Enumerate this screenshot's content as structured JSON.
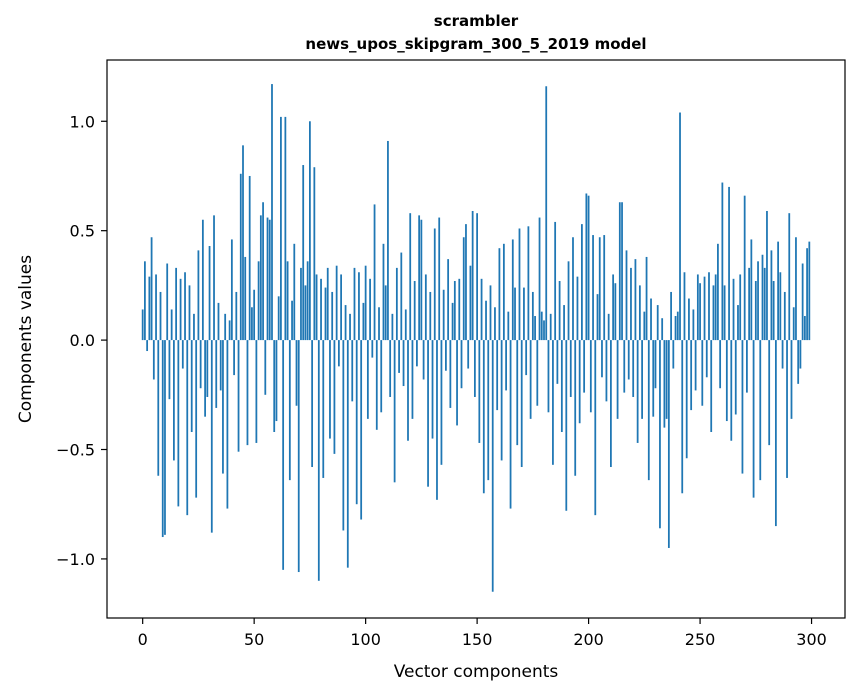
{
  "chart_data": {
    "type": "bar",
    "title": "scrambler",
    "subtitle": "news_upos_skipgram_300_5_2019 model",
    "xlabel": "Vector components",
    "ylabel": "Components values",
    "xlim": [
      -16,
      315
    ],
    "ylim": [
      -1.27,
      1.28
    ],
    "xticks": [
      0,
      50,
      100,
      150,
      200,
      250,
      300
    ],
    "yticks": [
      -1.0,
      -0.5,
      0.0,
      0.5,
      1.0
    ],
    "bar_color": "#1f77b4",
    "spine_color": "#000000",
    "x_start": 0,
    "values": [
      0.14,
      0.36,
      -0.05,
      0.29,
      0.47,
      -0.18,
      0.3,
      -0.62,
      0.22,
      -0.9,
      -0.89,
      0.35,
      -0.27,
      0.14,
      -0.55,
      0.33,
      -0.76,
      0.28,
      -0.13,
      0.31,
      -0.8,
      0.25,
      -0.42,
      0.12,
      -0.72,
      0.41,
      -0.22,
      0.55,
      -0.35,
      -0.26,
      0.43,
      -0.88,
      0.57,
      -0.31,
      0.17,
      -0.23,
      -0.61,
      0.12,
      -0.77,
      0.09,
      0.46,
      -0.16,
      0.22,
      -0.51,
      0.76,
      0.89,
      0.38,
      -0.48,
      0.75,
      0.15,
      0.23,
      -0.47,
      0.36,
      0.57,
      0.63,
      -0.25,
      0.56,
      0.55,
      1.17,
      -0.42,
      -0.37,
      0.2,
      1.02,
      -1.05,
      1.02,
      0.36,
      -0.64,
      0.18,
      0.44,
      -0.3,
      -1.06,
      0.33,
      0.8,
      0.25,
      0.36,
      1.0,
      -0.58,
      0.79,
      0.3,
      -1.1,
      0.28,
      -0.63,
      0.24,
      0.33,
      -0.45,
      0.22,
      -0.52,
      0.34,
      -0.12,
      0.3,
      -0.87,
      0.16,
      -1.04,
      0.12,
      -0.28,
      0.33,
      -0.75,
      0.31,
      -0.82,
      0.17,
      0.34,
      -0.36,
      0.28,
      -0.08,
      0.62,
      -0.41,
      0.15,
      -0.33,
      0.44,
      0.25,
      0.91,
      -0.26,
      0.12,
      -0.65,
      0.33,
      -0.15,
      0.4,
      -0.21,
      0.14,
      -0.46,
      0.58,
      -0.36,
      0.27,
      -0.12,
      0.57,
      0.55,
      -0.18,
      0.3,
      -0.67,
      0.22,
      -0.45,
      0.51,
      -0.73,
      0.56,
      -0.57,
      0.23,
      -0.14,
      0.37,
      -0.31,
      0.17,
      0.27,
      -0.39,
      0.28,
      -0.22,
      0.47,
      0.53,
      -0.13,
      0.34,
      0.59,
      -0.26,
      0.58,
      -0.47,
      0.28,
      -0.7,
      0.18,
      -0.64,
      0.25,
      -1.15,
      0.15,
      -0.32,
      0.42,
      -0.55,
      0.44,
      -0.23,
      0.13,
      -0.77,
      0.46,
      0.24,
      -0.48,
      0.51,
      -0.58,
      0.24,
      -0.16,
      0.52,
      -0.36,
      0.22,
      0.11,
      -0.3,
      0.56,
      0.13,
      0.09,
      1.16,
      -0.33,
      0.12,
      -0.57,
      0.54,
      -0.2,
      0.27,
      -0.42,
      0.16,
      -0.78,
      0.36,
      -0.26,
      0.47,
      -0.62,
      0.29,
      -0.38,
      0.53,
      -0.24,
      0.67,
      0.66,
      -0.33,
      0.48,
      -0.8,
      0.21,
      0.47,
      -0.17,
      0.48,
      -0.28,
      0.12,
      -0.58,
      0.3,
      0.26,
      -0.36,
      0.63,
      0.63,
      -0.24,
      0.41,
      -0.18,
      0.33,
      -0.26,
      0.37,
      -0.47,
      0.25,
      -0.36,
      0.13,
      0.38,
      -0.64,
      0.19,
      -0.35,
      -0.22,
      0.16,
      -0.86,
      0.1,
      -0.4,
      -0.36,
      -0.95,
      0.22,
      -0.13,
      0.11,
      0.13,
      1.04,
      -0.7,
      0.31,
      -0.54,
      0.19,
      -0.32,
      0.14,
      -0.23,
      0.3,
      0.26,
      -0.3,
      0.29,
      -0.17,
      0.31,
      -0.42,
      0.25,
      0.3,
      0.44,
      -0.22,
      0.72,
      0.25,
      -0.37,
      0.7,
      -0.46,
      0.28,
      -0.34,
      0.16,
      0.3,
      -0.61,
      0.66,
      -0.24,
      0.33,
      0.46,
      -0.72,
      0.27,
      0.36,
      -0.64,
      0.39,
      0.33,
      0.59,
      -0.48,
      0.41,
      0.27,
      -0.85,
      0.45,
      0.31,
      -0.13,
      0.22,
      -0.63,
      0.58,
      -0.36,
      0.15,
      0.47,
      -0.2,
      -0.13,
      0.35,
      0.11,
      0.42,
      0.45
    ]
  }
}
